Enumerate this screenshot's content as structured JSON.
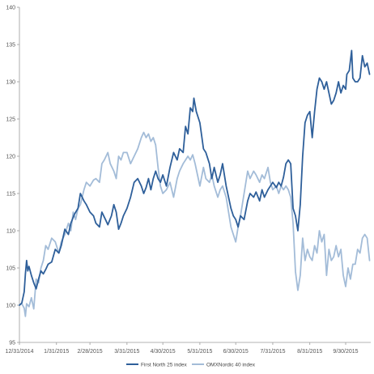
{
  "chart_data": {
    "type": "line",
    "xlim": [
      "2014-12-31",
      "2015-10-21"
    ],
    "ylim": [
      95,
      140
    ],
    "yticks": [
      95,
      100,
      105,
      110,
      115,
      120,
      125,
      130,
      135,
      140
    ],
    "xticks": [
      "12/31/2014",
      "1/31/2015",
      "2/28/2015",
      "3/31/2015",
      "4/30/2015",
      "5/31/2015",
      "6/30/2015",
      "7/31/2015",
      "8/31/2015",
      "9/30/2015"
    ],
    "grid": false,
    "legend_position": "bottom",
    "series": [
      {
        "name": "First North 25 index",
        "color": "#2e5f9a",
        "points": [
          [
            "2014-12-31",
            100
          ],
          [
            "2015-01-02",
            100.3
          ],
          [
            "2015-01-04",
            101.8
          ],
          [
            "2015-01-05",
            104.2
          ],
          [
            "2015-01-06",
            106.0
          ],
          [
            "2015-01-07",
            104.6
          ],
          [
            "2015-01-08",
            105.2
          ],
          [
            "2015-01-10",
            104.0
          ],
          [
            "2015-01-12",
            103.0
          ],
          [
            "2015-01-14",
            102.2
          ],
          [
            "2015-01-16",
            103.5
          ],
          [
            "2015-01-18",
            104.6
          ],
          [
            "2015-01-20",
            104.2
          ],
          [
            "2015-01-22",
            104.8
          ],
          [
            "2015-01-24",
            105.5
          ],
          [
            "2015-01-27",
            105.8
          ],
          [
            "2015-01-30",
            107.5
          ],
          [
            "2015-02-02",
            107.0
          ],
          [
            "2015-02-04",
            108.0
          ],
          [
            "2015-02-07",
            110.2
          ],
          [
            "2015-02-10",
            109.5
          ],
          [
            "2015-02-12",
            111.0
          ],
          [
            "2015-02-15",
            112.2
          ],
          [
            "2015-02-18",
            113.0
          ],
          [
            "2015-02-20",
            115.0
          ],
          [
            "2015-02-23",
            114.0
          ],
          [
            "2015-02-25",
            113.5
          ],
          [
            "2015-02-28",
            112.5
          ],
          [
            "2015-03-03",
            112.0
          ],
          [
            "2015-03-05",
            111.0
          ],
          [
            "2015-03-08",
            110.5
          ],
          [
            "2015-03-10",
            112.5
          ],
          [
            "2015-03-13",
            111.5
          ],
          [
            "2015-03-15",
            110.8
          ],
          [
            "2015-03-18",
            112.0
          ],
          [
            "2015-03-20",
            113.5
          ],
          [
            "2015-03-22",
            112.5
          ],
          [
            "2015-03-24",
            110.2
          ],
          [
            "2015-03-26",
            111.0
          ],
          [
            "2015-03-28",
            112.0
          ],
          [
            "2015-03-31",
            113.0
          ],
          [
            "2015-04-03",
            114.5
          ],
          [
            "2015-04-06",
            116.5
          ],
          [
            "2015-04-09",
            117.0
          ],
          [
            "2015-04-12",
            116.0
          ],
          [
            "2015-04-14",
            115.0
          ],
          [
            "2015-04-16",
            115.8
          ],
          [
            "2015-04-18",
            117.0
          ],
          [
            "2015-04-20",
            115.5
          ],
          [
            "2015-04-22",
            117.0
          ],
          [
            "2015-04-24",
            118.0
          ],
          [
            "2015-04-26",
            117.0
          ],
          [
            "2015-04-28",
            116.5
          ],
          [
            "2015-04-30",
            117.5
          ],
          [
            "2015-05-03",
            116.0
          ],
          [
            "2015-05-06",
            118.5
          ],
          [
            "2015-05-09",
            120.5
          ],
          [
            "2015-05-12",
            119.5
          ],
          [
            "2015-05-14",
            121.0
          ],
          [
            "2015-05-17",
            120.5
          ],
          [
            "2015-05-19",
            124.0
          ],
          [
            "2015-05-21",
            123.0
          ],
          [
            "2015-05-23",
            126.5
          ],
          [
            "2015-05-25",
            126.0
          ],
          [
            "2015-05-26",
            127.8
          ],
          [
            "2015-05-28",
            126.0
          ],
          [
            "2015-05-31",
            124.5
          ],
          [
            "2015-06-03",
            121.0
          ],
          [
            "2015-06-05",
            120.5
          ],
          [
            "2015-06-08",
            119.0
          ],
          [
            "2015-06-10",
            117.0
          ],
          [
            "2015-06-12",
            118.5
          ],
          [
            "2015-06-15",
            116.5
          ],
          [
            "2015-06-17",
            117.5
          ],
          [
            "2015-06-19",
            119.0
          ],
          [
            "2015-06-22",
            116.0
          ],
          [
            "2015-06-24",
            114.5
          ],
          [
            "2015-06-26",
            113.0
          ],
          [
            "2015-06-28",
            112.0
          ],
          [
            "2015-06-30",
            111.5
          ],
          [
            "2015-07-02",
            110.5
          ],
          [
            "2015-07-04",
            112.0
          ],
          [
            "2015-07-07",
            111.5
          ],
          [
            "2015-07-10",
            114.0
          ],
          [
            "2015-07-12",
            115.0
          ],
          [
            "2015-07-15",
            114.5
          ],
          [
            "2015-07-17",
            115.2
          ],
          [
            "2015-07-20",
            114.0
          ],
          [
            "2015-07-22",
            115.5
          ],
          [
            "2015-07-24",
            114.5
          ],
          [
            "2015-07-27",
            115.5
          ],
          [
            "2015-07-29",
            116.0
          ],
          [
            "2015-07-31",
            116.5
          ],
          [
            "2015-08-03",
            115.8
          ],
          [
            "2015-08-05",
            116.5
          ],
          [
            "2015-08-07",
            116.0
          ],
          [
            "2015-08-09",
            117.2
          ],
          [
            "2015-08-11",
            119.0
          ],
          [
            "2015-08-13",
            119.5
          ],
          [
            "2015-08-15",
            119.0
          ],
          [
            "2015-08-17",
            113.0
          ],
          [
            "2015-08-19",
            112.0
          ],
          [
            "2015-08-21",
            110.0
          ],
          [
            "2015-08-23",
            113.5
          ],
          [
            "2015-08-25",
            120.0
          ],
          [
            "2015-08-27",
            124.5
          ],
          [
            "2015-08-29",
            125.5
          ],
          [
            "2015-08-31",
            126.0
          ],
          [
            "2015-09-02",
            122.5
          ],
          [
            "2015-09-04",
            126.0
          ],
          [
            "2015-09-06",
            129.0
          ],
          [
            "2015-09-08",
            130.5
          ],
          [
            "2015-09-10",
            130.0
          ],
          [
            "2015-09-12",
            129.0
          ],
          [
            "2015-09-14",
            130.0
          ],
          [
            "2015-09-16",
            128.5
          ],
          [
            "2015-09-18",
            127.0
          ],
          [
            "2015-09-20",
            127.5
          ],
          [
            "2015-09-22",
            128.5
          ],
          [
            "2015-09-24",
            130.0
          ],
          [
            "2015-09-26",
            128.5
          ],
          [
            "2015-09-28",
            129.5
          ],
          [
            "2015-09-30",
            129.0
          ],
          [
            "2015-10-01",
            131.0
          ],
          [
            "2015-10-03",
            131.5
          ],
          [
            "2015-10-05",
            134.2
          ],
          [
            "2015-10-06",
            130.5
          ],
          [
            "2015-10-08",
            130.0
          ],
          [
            "2015-10-10",
            130.0
          ],
          [
            "2015-10-12",
            130.5
          ],
          [
            "2015-10-14",
            133.5
          ],
          [
            "2015-10-16",
            132.0
          ],
          [
            "2015-10-18",
            132.5
          ],
          [
            "2015-10-20",
            131.0
          ]
        ]
      },
      {
        "name": "OMXNordic 40 index",
        "color": "#a3bcd8",
        "points": [
          [
            "2014-12-31",
            100
          ],
          [
            "2015-01-02",
            100.2
          ],
          [
            "2015-01-04",
            99.6
          ],
          [
            "2015-01-05",
            98.5
          ],
          [
            "2015-01-06",
            100.2
          ],
          [
            "2015-01-08",
            99.8
          ],
          [
            "2015-01-10",
            101.0
          ],
          [
            "2015-01-12",
            99.5
          ],
          [
            "2015-01-14",
            103.5
          ],
          [
            "2015-01-16",
            103.0
          ],
          [
            "2015-01-18",
            105.0
          ],
          [
            "2015-01-20",
            106.0
          ],
          [
            "2015-01-22",
            108.0
          ],
          [
            "2015-01-24",
            107.5
          ],
          [
            "2015-01-27",
            109.0
          ],
          [
            "2015-01-30",
            108.5
          ],
          [
            "2015-02-02",
            107.0
          ],
          [
            "2015-02-04",
            108.5
          ],
          [
            "2015-02-07",
            109.5
          ],
          [
            "2015-02-10",
            111.0
          ],
          [
            "2015-02-12",
            110.0
          ],
          [
            "2015-02-14",
            112.5
          ],
          [
            "2015-02-16",
            111.5
          ],
          [
            "2015-02-18",
            113.0
          ],
          [
            "2015-02-20",
            113.5
          ],
          [
            "2015-02-23",
            115.5
          ],
          [
            "2015-02-25",
            116.5
          ],
          [
            "2015-02-28",
            116.0
          ],
          [
            "2015-03-03",
            116.8
          ],
          [
            "2015-03-05",
            117.0
          ],
          [
            "2015-03-08",
            116.5
          ],
          [
            "2015-03-10",
            119.0
          ],
          [
            "2015-03-12",
            119.5
          ],
          [
            "2015-03-15",
            120.5
          ],
          [
            "2015-03-17",
            119.0
          ],
          [
            "2015-03-20",
            118.0
          ],
          [
            "2015-03-22",
            117.0
          ],
          [
            "2015-03-24",
            120.0
          ],
          [
            "2015-03-26",
            119.5
          ],
          [
            "2015-03-28",
            120.5
          ],
          [
            "2015-03-31",
            120.5
          ],
          [
            "2015-04-03",
            119.0
          ],
          [
            "2015-04-06",
            120.0
          ],
          [
            "2015-04-09",
            121.0
          ],
          [
            "2015-04-12",
            122.5
          ],
          [
            "2015-04-14",
            123.2
          ],
          [
            "2015-04-16",
            122.5
          ],
          [
            "2015-04-18",
            123.0
          ],
          [
            "2015-04-20",
            122.0
          ],
          [
            "2015-04-22",
            122.5
          ],
          [
            "2015-04-24",
            121.5
          ],
          [
            "2015-04-26",
            118.5
          ],
          [
            "2015-04-28",
            116.0
          ],
          [
            "2015-04-30",
            115.0
          ],
          [
            "2015-05-03",
            115.5
          ],
          [
            "2015-05-06",
            116.5
          ],
          [
            "2015-05-09",
            114.5
          ],
          [
            "2015-05-12",
            117.0
          ],
          [
            "2015-05-14",
            118.0
          ],
          [
            "2015-05-17",
            119.0
          ],
          [
            "2015-05-19",
            119.5
          ],
          [
            "2015-05-21",
            120.0
          ],
          [
            "2015-05-23",
            119.5
          ],
          [
            "2015-05-25",
            120.2
          ],
          [
            "2015-05-27",
            119.0
          ],
          [
            "2015-05-29",
            117.5
          ],
          [
            "2015-05-31",
            116.0
          ],
          [
            "2015-06-03",
            118.5
          ],
          [
            "2015-06-05",
            117.0
          ],
          [
            "2015-06-08",
            116.5
          ],
          [
            "2015-06-10",
            117.5
          ],
          [
            "2015-06-12",
            116.0
          ],
          [
            "2015-06-15",
            114.5
          ],
          [
            "2015-06-17",
            115.5
          ],
          [
            "2015-06-19",
            116.0
          ],
          [
            "2015-06-22",
            114.5
          ],
          [
            "2015-06-24",
            112.5
          ],
          [
            "2015-06-26",
            110.5
          ],
          [
            "2015-06-28",
            109.5
          ],
          [
            "2015-06-30",
            108.5
          ],
          [
            "2015-07-02",
            110.5
          ],
          [
            "2015-07-04",
            112.0
          ],
          [
            "2015-07-07",
            115.0
          ],
          [
            "2015-07-10",
            118.0
          ],
          [
            "2015-07-12",
            117.0
          ],
          [
            "2015-07-15",
            118.0
          ],
          [
            "2015-07-17",
            117.5
          ],
          [
            "2015-07-20",
            116.5
          ],
          [
            "2015-07-22",
            117.5
          ],
          [
            "2015-07-24",
            117.0
          ],
          [
            "2015-07-27",
            118.5
          ],
          [
            "2015-07-29",
            116.5
          ],
          [
            "2015-07-31",
            115.5
          ],
          [
            "2015-08-03",
            116.0
          ],
          [
            "2015-08-05",
            115.0
          ],
          [
            "2015-08-07",
            116.0
          ],
          [
            "2015-08-09",
            115.5
          ],
          [
            "2015-08-11",
            116.0
          ],
          [
            "2015-08-13",
            115.5
          ],
          [
            "2015-08-15",
            114.5
          ],
          [
            "2015-08-17",
            111.0
          ],
          [
            "2015-08-19",
            104.5
          ],
          [
            "2015-08-21",
            102.0
          ],
          [
            "2015-08-23",
            104.0
          ],
          [
            "2015-08-25",
            109.0
          ],
          [
            "2015-08-27",
            106.0
          ],
          [
            "2015-08-29",
            107.5
          ],
          [
            "2015-08-31",
            106.5
          ],
          [
            "2015-09-02",
            106.0
          ],
          [
            "2015-09-04",
            108.0
          ],
          [
            "2015-09-06",
            107.0
          ],
          [
            "2015-09-08",
            110.0
          ],
          [
            "2015-09-10",
            108.5
          ],
          [
            "2015-09-12",
            109.5
          ],
          [
            "2015-09-14",
            104.0
          ],
          [
            "2015-09-16",
            107.5
          ],
          [
            "2015-09-18",
            106.0
          ],
          [
            "2015-09-20",
            106.5
          ],
          [
            "2015-09-22",
            108.0
          ],
          [
            "2015-09-24",
            106.5
          ],
          [
            "2015-09-26",
            107.5
          ],
          [
            "2015-09-28",
            104.0
          ],
          [
            "2015-09-30",
            102.5
          ],
          [
            "2015-10-02",
            105.0
          ],
          [
            "2015-10-04",
            103.5
          ],
          [
            "2015-10-06",
            105.5
          ],
          [
            "2015-10-08",
            105.5
          ],
          [
            "2015-10-10",
            107.5
          ],
          [
            "2015-10-12",
            107.0
          ],
          [
            "2015-10-14",
            109.0
          ],
          [
            "2015-10-16",
            109.5
          ],
          [
            "2015-10-18",
            109.0
          ],
          [
            "2015-10-20",
            106.0
          ]
        ]
      }
    ]
  }
}
